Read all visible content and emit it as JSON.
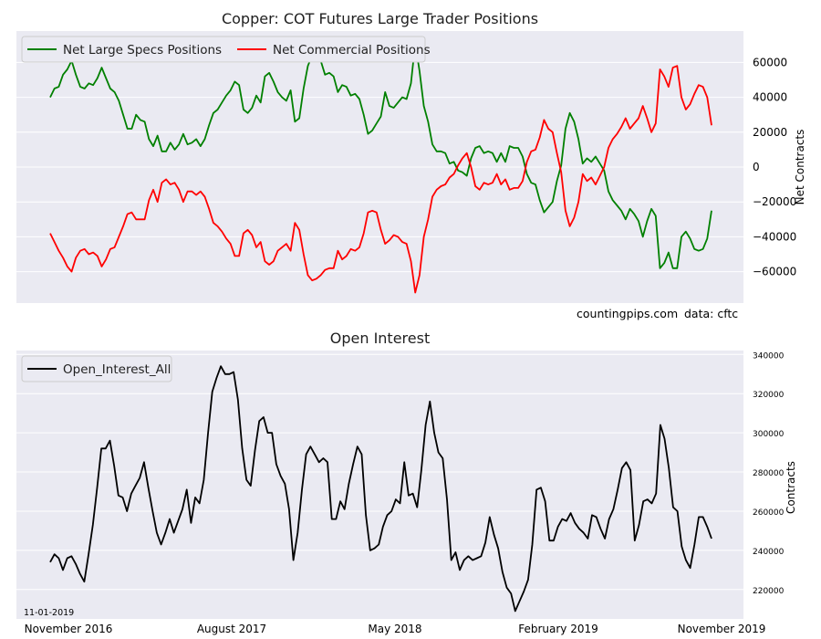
{
  "chart_data": [
    {
      "type": "line",
      "title": "Copper: COT Futures Large Trader Positions",
      "ylabel": "Net Contracts",
      "ylim": [
        -78000,
        78000
      ],
      "yticks": [
        -60000,
        -40000,
        -20000,
        0,
        20000,
        40000,
        60000
      ],
      "grid": true,
      "legend_position": "top-left",
      "annotations": [
        "countingpips.com",
        "data: cftc"
      ],
      "series": [
        {
          "name": "Net Large Specs Positions",
          "color": "#008000",
          "values": [
            40000,
            45000,
            46000,
            53000,
            56000,
            61000,
            53000,
            46000,
            45000,
            48000,
            47000,
            51000,
            57000,
            51000,
            45000,
            43000,
            38000,
            30000,
            22000,
            22000,
            30000,
            27000,
            26000,
            16000,
            12000,
            18000,
            9000,
            9000,
            14000,
            10000,
            13000,
            19000,
            13000,
            14000,
            16000,
            12000,
            16000,
            24000,
            31000,
            33000,
            37000,
            41000,
            44000,
            49000,
            47000,
            33000,
            31000,
            34000,
            41000,
            37000,
            52000,
            54000,
            49000,
            43000,
            40000,
            38000,
            44000,
            26000,
            28000,
            45000,
            58000,
            64000,
            62000,
            61000,
            53000,
            54000,
            52000,
            43000,
            47000,
            46000,
            41000,
            42000,
            39000,
            30000,
            19000,
            21000,
            25000,
            29000,
            43000,
            35000,
            34000,
            37000,
            40000,
            39000,
            48000,
            71000,
            55000,
            35000,
            26000,
            13000,
            9000,
            9000,
            8000,
            2000,
            3000,
            -2000,
            -3000,
            -5000,
            5000,
            11000,
            12000,
            8000,
            9000,
            8000,
            3000,
            8000,
            3000,
            12000,
            11000,
            11000,
            6000,
            -4000,
            -9000,
            -10000,
            -19000,
            -26000,
            -23000,
            -20000,
            -8000,
            1000,
            22000,
            31000,
            26000,
            16000,
            2000,
            5000,
            3000,
            6000,
            2000,
            -2000,
            -14000,
            -19000,
            -22000,
            -25000,
            -30000,
            -24000,
            -27000,
            -31000,
            -40000,
            -31000,
            -24000,
            -28000,
            -58000,
            -55000,
            -49000,
            -58000,
            -58000,
            -40000,
            -37000,
            -41000,
            -47000,
            -48000,
            -47000,
            -41000,
            -25000
          ]
        },
        {
          "name": "Net Commercial Positions",
          "color": "#ff0000",
          "values": [
            -38000,
            -43000,
            -48000,
            -52000,
            -57000,
            -60000,
            -52000,
            -48000,
            -47000,
            -50000,
            -49000,
            -51000,
            -57000,
            -53000,
            -47000,
            -46000,
            -40000,
            -34000,
            -27000,
            -26000,
            -30000,
            -30000,
            -30000,
            -19000,
            -13000,
            -20000,
            -9000,
            -7000,
            -10000,
            -9000,
            -13000,
            -20000,
            -14000,
            -14000,
            -16000,
            -14000,
            -17000,
            -24000,
            -32000,
            -34000,
            -37000,
            -41000,
            -44000,
            -51000,
            -51000,
            -38000,
            -36000,
            -39000,
            -46000,
            -43000,
            -54000,
            -56000,
            -54000,
            -48000,
            -46000,
            -44000,
            -48000,
            -32000,
            -36000,
            -50000,
            -62000,
            -65000,
            -64000,
            -62000,
            -59000,
            -58000,
            -58000,
            -48000,
            -53000,
            -51000,
            -47000,
            -48000,
            -46000,
            -38000,
            -26000,
            -25000,
            -26000,
            -36000,
            -44000,
            -42000,
            -39000,
            -40000,
            -43000,
            -44000,
            -54000,
            -72000,
            -62000,
            -40000,
            -30000,
            -17000,
            -13000,
            -11000,
            -10000,
            -6000,
            -4000,
            1000,
            5000,
            8000,
            0,
            -11000,
            -13000,
            -9000,
            -10000,
            -9000,
            -4000,
            -10000,
            -7000,
            -13000,
            -12000,
            -12000,
            -8000,
            3000,
            9000,
            10000,
            17000,
            27000,
            22000,
            20000,
            8000,
            -3000,
            -25000,
            -34000,
            -29000,
            -20000,
            -4000,
            -8000,
            -6000,
            -10000,
            -5000,
            0,
            11000,
            16000,
            19000,
            23000,
            28000,
            22000,
            25000,
            28000,
            35000,
            28000,
            20000,
            25000,
            56000,
            52000,
            46000,
            57000,
            58000,
            40000,
            33000,
            36000,
            42000,
            47000,
            46000,
            40000,
            24000
          ]
        }
      ]
    },
    {
      "type": "line",
      "title": "Open Interest",
      "ylabel": "Contracts",
      "ylim": [
        205000,
        342000
      ],
      "yticks": [
        220000,
        240000,
        260000,
        280000,
        300000,
        320000,
        340000
      ],
      "grid": true,
      "legend_position": "top-left",
      "annotations": [
        "11-01-2019"
      ],
      "x_tick_labels": [
        "November 2016",
        "August 2017",
        "May 2018",
        "February 2019",
        "November 2019"
      ],
      "series": [
        {
          "name": "Open_Interest_All",
          "color": "#000000",
          "values": [
            234000,
            238000,
            236000,
            230000,
            236000,
            237000,
            233000,
            228000,
            224000,
            238000,
            253000,
            272000,
            292000,
            292000,
            296000,
            283000,
            268000,
            267000,
            260000,
            269000,
            273000,
            277000,
            285000,
            272000,
            260000,
            249000,
            243000,
            249000,
            256000,
            249000,
            255000,
            261000,
            271000,
            254000,
            267000,
            264000,
            276000,
            300000,
            321000,
            328000,
            334000,
            330000,
            330000,
            331000,
            317000,
            292000,
            276000,
            273000,
            291000,
            306000,
            308000,
            300000,
            300000,
            284000,
            278000,
            274000,
            261000,
            235000,
            249000,
            271000,
            289000,
            293000,
            289000,
            285000,
            287000,
            285000,
            256000,
            256000,
            265000,
            261000,
            274000,
            284000,
            293000,
            289000,
            258000,
            240000,
            241000,
            243000,
            252000,
            258000,
            260000,
            266000,
            264000,
            285000,
            268000,
            269000,
            262000,
            281000,
            304000,
            316000,
            300000,
            290000,
            287000,
            266000,
            235000,
            239000,
            230000,
            235000,
            237000,
            235000,
            236000,
            237000,
            244000,
            257000,
            248000,
            241000,
            229000,
            221000,
            218000,
            209000,
            214000,
            219000,
            225000,
            243000,
            271000,
            272000,
            265000,
            245000,
            245000,
            252000,
            256000,
            255000,
            259000,
            254000,
            251000,
            249000,
            246000,
            258000,
            257000,
            251000,
            246000,
            256000,
            261000,
            271000,
            282000,
            285000,
            281000,
            245000,
            253000,
            265000,
            266000,
            264000,
            269000,
            304000,
            297000,
            282000,
            262000,
            260000,
            242000,
            235000,
            231000,
            243000,
            257000,
            257000,
            252000,
            246000
          ]
        }
      ]
    }
  ]
}
